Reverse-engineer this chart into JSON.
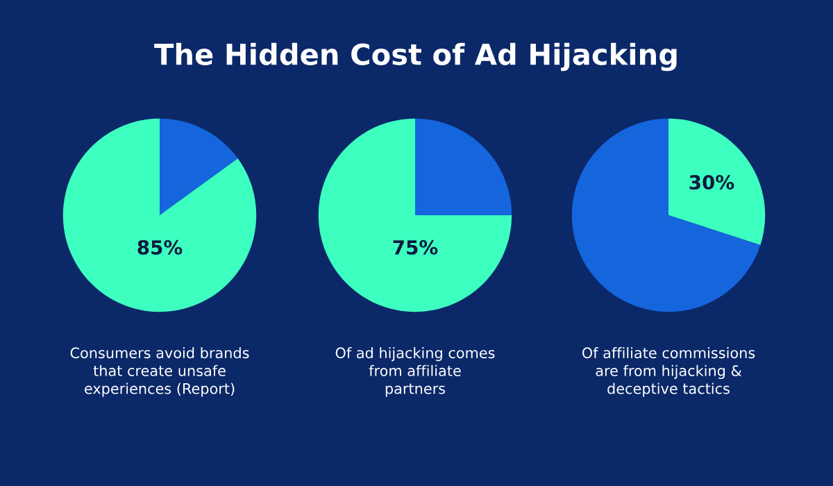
{
  "chart_data": [
    {
      "type": "pie",
      "title": "The Hidden Cost of Ad Hijacking",
      "categories": [
        null,
        null
      ],
      "values": [
        15,
        85
      ],
      "colors": [
        "#1565dc",
        "#3dffc0"
      ],
      "value_labels": [
        null,
        "85%"
      ],
      "annotations": [
        "Consumers avoid brands\nthat create unsafe\nexperiences (Report)"
      ]
    },
    {
      "type": "pie",
      "categories": [
        null,
        null
      ],
      "values": [
        25,
        75
      ],
      "colors": [
        "#1565dc",
        "#3dffc0"
      ],
      "value_labels": [
        null,
        "75%"
      ],
      "annotations": [
        "Of ad hijacking comes\nfrom affiliate\npartners"
      ]
    },
    {
      "type": "pie",
      "categories": [
        null,
        null
      ],
      "values": [
        30,
        70
      ],
      "colors": [
        "#3dffc0",
        "#1565dc"
      ],
      "value_labels": [
        "30%",
        null
      ],
      "annotations": [
        "Of affiliate commissions\nare from hijacking &\ndeceptive tactics"
      ]
    }
  ]
}
